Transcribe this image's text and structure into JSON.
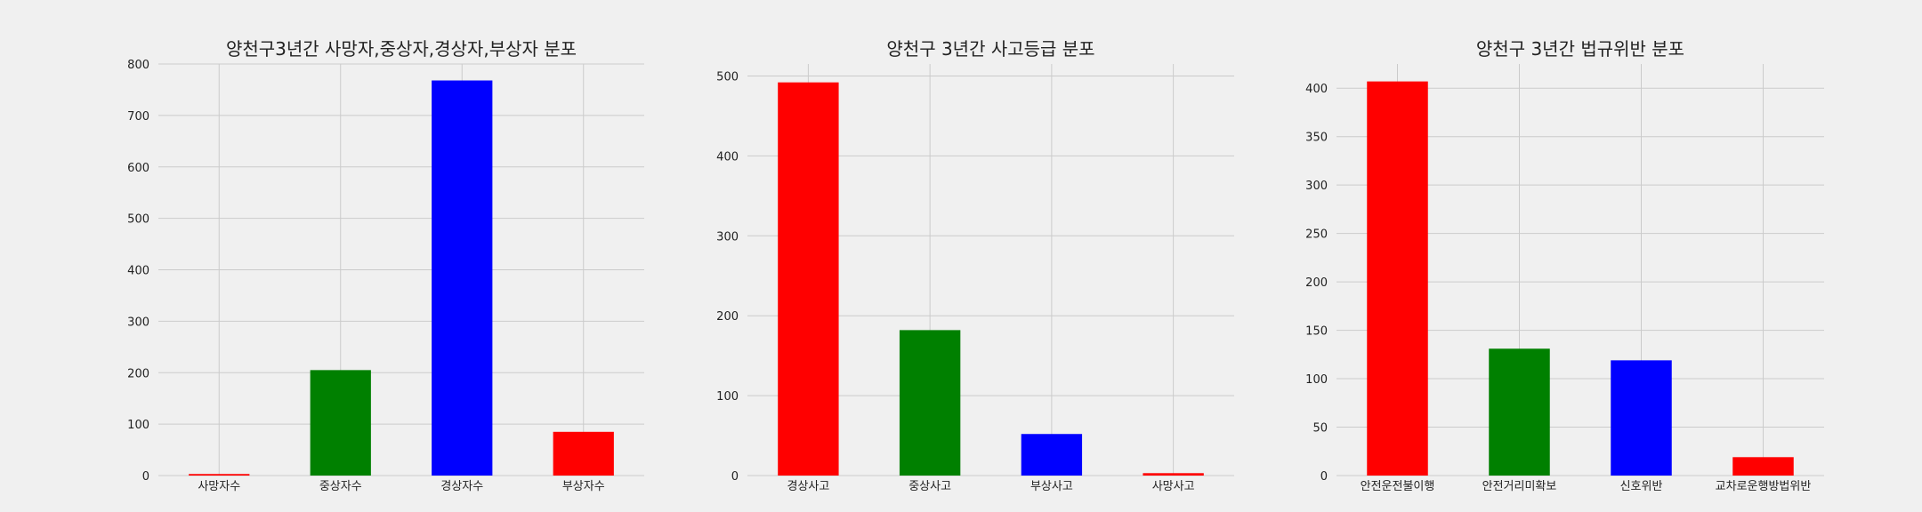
{
  "chart_data": [
    {
      "type": "bar",
      "title": "양천구3년간 사망자,중상자,경상자,부상자 분포",
      "categories": [
        "사망자수",
        "중상자수",
        "경상자수",
        "부상자수"
      ],
      "values": [
        3,
        205,
        768,
        85
      ],
      "colors": [
        "#ff0000",
        "#008000",
        "#0000ff",
        "#ff0000"
      ],
      "ylim": [
        0,
        800
      ],
      "yticks": [
        0,
        100,
        200,
        300,
        400,
        500,
        600,
        700,
        800
      ],
      "grid": true
    },
    {
      "type": "bar",
      "title": "양천구 3년간 사고등급 분포",
      "categories": [
        "경상사고",
        "중상사고",
        "부상사고",
        "사망사고"
      ],
      "values": [
        492,
        182,
        52,
        3
      ],
      "colors": [
        "#ff0000",
        "#008000",
        "#0000ff",
        "#ff0000"
      ],
      "ylim": [
        0,
        515
      ],
      "yticks": [
        0,
        100,
        200,
        300,
        400,
        500
      ],
      "grid": true
    },
    {
      "type": "bar",
      "title": "양천구 3년간 법규위반 분포",
      "categories": [
        "안전운전불이행",
        "안전거리미확보",
        "신호위반",
        "교차로운행방법위반"
      ],
      "values": [
        407,
        131,
        119,
        19
      ],
      "colors": [
        "#ff0000",
        "#008000",
        "#0000ff",
        "#ff0000"
      ],
      "ylim": [
        0,
        425
      ],
      "yticks": [
        0,
        50,
        100,
        150,
        200,
        250,
        300,
        350,
        400
      ],
      "grid": true
    }
  ]
}
